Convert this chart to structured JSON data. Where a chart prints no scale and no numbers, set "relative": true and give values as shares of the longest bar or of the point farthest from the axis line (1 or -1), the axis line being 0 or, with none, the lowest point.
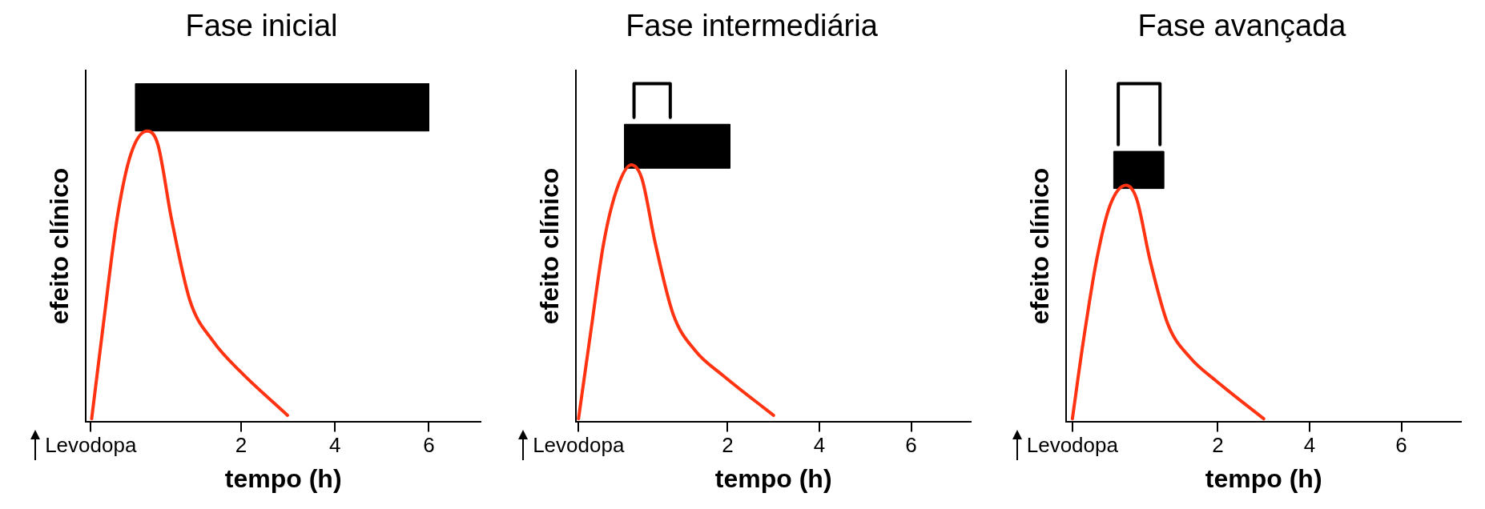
{
  "chart_data": [
    {
      "type": "line",
      "title": "Fase inicial",
      "xlabel": "tempo (h)",
      "ylabel": "efeito clínico",
      "relative": true,
      "legend": false,
      "xlim": [
        -1.3,
        7.1
      ],
      "xticks": [
        {
          "value": -1.2,
          "label": "Levodopa"
        },
        2,
        4,
        6
      ],
      "series": [
        {
          "type": "area",
          "color": "#000000",
          "x": [
            -0.25,
            -0.25,
            6.0,
            6.0,
            -0.25
          ],
          "values": [
            0.86,
            1,
            1,
            0.86,
            0.86
          ]
        },
        {
          "type": "line",
          "color": "#ff3311",
          "x": [
            -1.18,
            -0.93,
            -0.64,
            -0.35,
            0,
            0.23,
            0.52,
            0.91,
            1.4,
            1.98,
            2.99
          ],
          "values": [
            0.01,
            0.29,
            0.6,
            0.79,
            0.86,
            0.82,
            0.6,
            0.36,
            0.24,
            0.15,
            0.02
          ]
        }
      ]
    },
    {
      "type": "line",
      "title": "Fase intermediária",
      "xlabel": "tempo (h)",
      "ylabel": "efeito clínico",
      "relative": true,
      "legend": false,
      "xlim": [
        -1.3,
        7.3
      ],
      "xticks": [
        {
          "value": -1.25,
          "label": "Levodopa"
        },
        2,
        4,
        6
      ],
      "series": [
        {
          "type": "area",
          "color": "#000000",
          "x": [
            -0.25,
            -0.25,
            2.05,
            2.05,
            -0.25
          ],
          "values": [
            0.75,
            0.88,
            0.88,
            0.75,
            0.75
          ]
        },
        {
          "type": "line",
          "color": "#000000",
          "x": [
            -0.04,
            -0.04,
            0.75,
            0.75
          ],
          "values": [
            0.9,
            1,
            1,
            0.9
          ]
        },
        {
          "type": "line",
          "color": "#ff3311",
          "x": [
            -1.25,
            -0.99,
            -0.7,
            -0.41,
            -0.1,
            0.13,
            0.42,
            0.81,
            1.3,
            1.88,
            3.0
          ],
          "values": [
            0.01,
            0.26,
            0.53,
            0.69,
            0.76,
            0.72,
            0.53,
            0.32,
            0.21,
            0.14,
            0.02
          ]
        }
      ]
    },
    {
      "type": "line",
      "title": "Fase avançada",
      "xlabel": "tempo (h)",
      "ylabel": "efeito clínico",
      "relative": true,
      "legend": false,
      "xlim": [
        -1.3,
        7.3
      ],
      "xticks": [
        {
          "value": -1.17,
          "label": "Levodopa"
        },
        2,
        4,
        6
      ],
      "series": [
        {
          "type": "area",
          "color": "#000000",
          "x": [
            -0.27,
            -0.27,
            0.82,
            0.82,
            -0.27
          ],
          "values": [
            0.69,
            0.8,
            0.8,
            0.69,
            0.69
          ]
        },
        {
          "type": "line",
          "color": "#000000",
          "x": [
            -0.17,
            -0.17,
            0.74,
            0.74
          ],
          "values": [
            0.82,
            1,
            1,
            0.82
          ]
        },
        {
          "type": "line",
          "color": "#ff3311",
          "x": [
            -1.17,
            -0.93,
            -0.64,
            -0.35,
            0,
            0.23,
            0.52,
            0.91,
            1.4,
            1.98,
            3.0
          ],
          "values": [
            0.01,
            0.24,
            0.48,
            0.64,
            0.7,
            0.66,
            0.48,
            0.29,
            0.19,
            0.12,
            0.01
          ]
        }
      ]
    }
  ]
}
